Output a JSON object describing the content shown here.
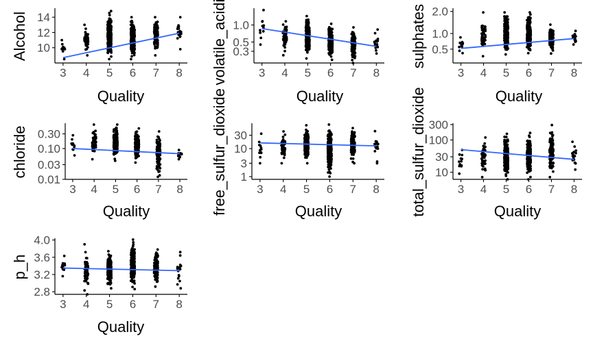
{
  "colors": {
    "points": "#000000",
    "trend": "#3366ff",
    "axis": "#000000"
  },
  "chart_data": [
    {
      "type": "scatter",
      "xlabel": "Quality",
      "ylabel": "Alcohol",
      "scale": "linear",
      "x_ticks": [
        3,
        4,
        5,
        6,
        7,
        8
      ],
      "y_ticks": [
        10,
        12,
        14
      ],
      "y_tick_labels": [
        "10",
        "12",
        "14"
      ],
      "ylim": [
        8.0,
        15.0
      ],
      "grid": false,
      "spread": {
        "3": [
          8.5,
          11.0
        ],
        "4": [
          9.0,
          13.0
        ],
        "5": [
          8.5,
          14.8
        ],
        "6": [
          8.5,
          14.0
        ],
        "7": [
          9.0,
          14.0
        ],
        "8": [
          9.8,
          14.0
        ]
      },
      "trend": [
        [
          3,
          8.7
        ],
        [
          8,
          11.9
        ]
      ]
    },
    {
      "type": "scatter",
      "xlabel": "Quality",
      "ylabel": "volatile_acidity",
      "scale": "sqrt",
      "x_ticks": [
        3,
        4,
        5,
        6,
        7,
        8
      ],
      "y_ticks": [
        0.3,
        0.5,
        1.0
      ],
      "y_tick_labels": [
        "0.3",
        "0.5",
        "1.0"
      ],
      "ylim": [
        0.12,
        1.6
      ],
      "grid": false,
      "spread": {
        "3": [
          0.44,
          1.58
        ],
        "4": [
          0.23,
          1.13
        ],
        "5": [
          0.18,
          1.33
        ],
        "6": [
          0.16,
          1.04
        ],
        "7": [
          0.12,
          0.92
        ],
        "8": [
          0.26,
          0.85
        ]
      },
      "trend": [
        [
          3,
          0.88
        ],
        [
          8,
          0.4
        ]
      ]
    },
    {
      "type": "scatter",
      "xlabel": "Quality",
      "ylabel": "sulphates",
      "scale": "sqrt",
      "x_ticks": [
        3,
        4,
        5,
        6,
        7,
        8
      ],
      "y_ticks": [
        0.5,
        1.0,
        2.0
      ],
      "y_tick_labels": [
        "0.5",
        "1.0",
        "2.0"
      ],
      "ylim": [
        0.2,
        2.1
      ],
      "grid": false,
      "spread": {
        "3": [
          0.4,
          0.86
        ],
        "4": [
          0.33,
          1.95
        ],
        "5": [
          0.37,
          1.95
        ],
        "6": [
          0.4,
          1.95
        ],
        "7": [
          0.39,
          1.36
        ],
        "8": [
          0.63,
          1.1
        ]
      },
      "trend": [
        [
          3,
          0.52
        ],
        [
          8,
          0.82
        ]
      ]
    },
    {
      "type": "scatter",
      "xlabel": "Quality",
      "ylabel": "chloride",
      "scale": "log",
      "x_ticks": [
        3,
        4,
        5,
        6,
        7,
        8
      ],
      "y_ticks": [
        0.01,
        0.03,
        0.1,
        0.3
      ],
      "y_tick_labels": [
        "0.01",
        "0.03",
        "0.10",
        "0.30"
      ],
      "ylim": [
        0.01,
        0.6
      ],
      "grid": false,
      "spread": {
        "3": [
          0.06,
          0.27
        ],
        "4": [
          0.045,
          0.6
        ],
        "5": [
          0.04,
          0.6
        ],
        "6": [
          0.035,
          0.45
        ],
        "7": [
          0.012,
          0.36
        ],
        "8": [
          0.045,
          0.09
        ]
      },
      "trend": [
        [
          3,
          0.1
        ],
        [
          8,
          0.068
        ]
      ]
    },
    {
      "type": "scatter",
      "xlabel": "Quality",
      "ylabel": "free_sulfur_dioxide",
      "scale": "log",
      "x_ticks": [
        3,
        4,
        5,
        6,
        7,
        8
      ],
      "y_ticks": [
        1,
        3,
        10,
        30
      ],
      "y_tick_labels": [
        "1",
        "3",
        "10",
        "30"
      ],
      "ylim": [
        0.8,
        72
      ],
      "grid": false,
      "spread": {
        "3": [
          3,
          34
        ],
        "4": [
          3,
          41
        ],
        "5": [
          3,
          68
        ],
        "6": [
          1,
          72
        ],
        "7": [
          3,
          54
        ],
        "8": [
          3,
          42
        ]
      },
      "trend": [
        [
          3,
          16
        ],
        [
          8,
          12.5
        ]
      ]
    },
    {
      "type": "scatter",
      "xlabel": "Quality",
      "ylabel": "total_sulfur_dioxide",
      "scale": "log",
      "x_ticks": [
        3,
        4,
        5,
        6,
        7,
        8
      ],
      "y_ticks": [
        10,
        30,
        100,
        300
      ],
      "y_tick_labels": [
        "10",
        "30",
        "100",
        "300"
      ],
      "ylim": [
        6,
        300
      ],
      "grid": false,
      "spread": {
        "3": [
          9,
          49
        ],
        "4": [
          7,
          119
        ],
        "5": [
          6,
          155
        ],
        "6": [
          6,
          165
        ],
        "7": [
          7,
          290
        ],
        "8": [
          12,
          88
        ]
      },
      "trend": [
        [
          3,
          50
        ],
        [
          8,
          25
        ]
      ]
    },
    {
      "type": "scatter",
      "xlabel": "Quality",
      "ylabel": "p_h",
      "scale": "linear",
      "x_ticks": [
        3,
        4,
        5,
        6,
        7,
        8
      ],
      "y_ticks": [
        2.8,
        3.2,
        3.6,
        4.0
      ],
      "y_tick_labels": [
        "2.8",
        "3.2",
        "3.6",
        "4.0"
      ],
      "ylim": [
        2.74,
        4.01
      ],
      "grid": false,
      "spread": {
        "3": [
          3.16,
          3.63
        ],
        "4": [
          2.74,
          3.9
        ],
        "5": [
          2.88,
          3.74
        ],
        "6": [
          2.86,
          4.01
        ],
        "7": [
          2.92,
          3.78
        ],
        "8": [
          2.88,
          3.72
        ]
      },
      "trend": [
        [
          3,
          3.35
        ],
        [
          8,
          3.29
        ]
      ]
    }
  ]
}
